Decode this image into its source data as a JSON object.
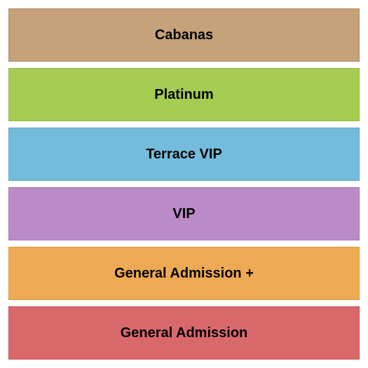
{
  "seating_chart": {
    "type": "infographic",
    "background_color": "#ffffff",
    "gap": 9,
    "padding": 12,
    "label_fontsize": 20,
    "label_fontweight": "bold",
    "label_color": "#000000",
    "border_width": 1,
    "sections": [
      {
        "label": "Cabanas",
        "fill_color": "#c5a279",
        "border_color": "#b08f68"
      },
      {
        "label": "Platinum",
        "fill_color": "#a5cd52",
        "border_color": "#94b948"
      },
      {
        "label": "Terrace VIP",
        "fill_color": "#74bcdb",
        "border_color": "#5ea8c7"
      },
      {
        "label": "VIP",
        "fill_color": "#ba8bc7",
        "border_color": "#a778b4"
      },
      {
        "label": "General Admission +",
        "fill_color": "#eeaa52",
        "border_color": "#d99742"
      },
      {
        "label": "General Admission",
        "fill_color": "#d9686b",
        "border_color": "#c55659"
      }
    ]
  }
}
